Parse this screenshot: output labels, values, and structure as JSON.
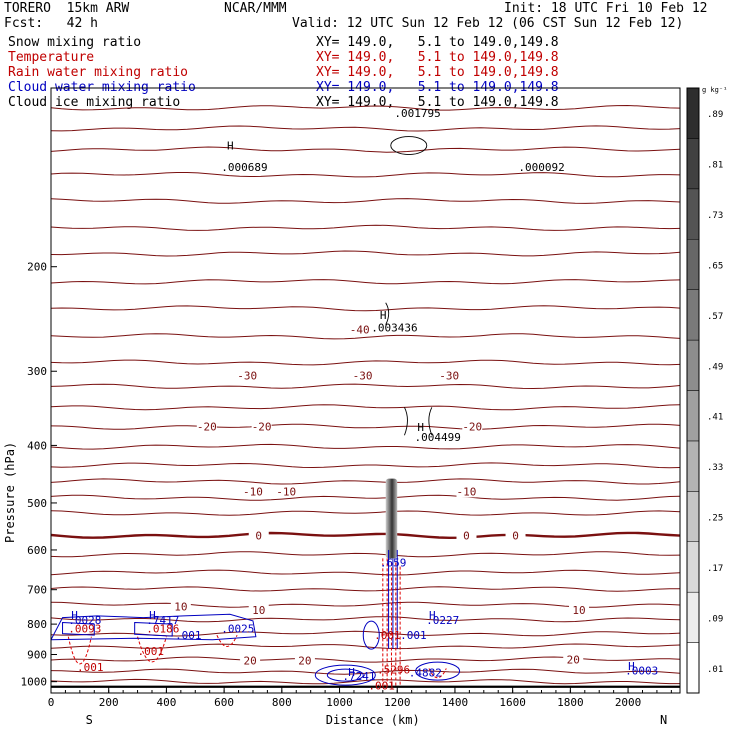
{
  "header": {
    "model": "TORERO  15km ARW",
    "center": "NCAR/MMM",
    "init": "Init: 18 UTC Fri 10 Feb 12",
    "fcst": "Fcst:   42 h",
    "valid": "Valid: 12 UTC Sun 12 Feb 12 (06 CST Sun 12 Feb 12)"
  },
  "fields": [
    {
      "label": "Snow mixing ratio",
      "color": "#000000",
      "xy": "XY= 149.0,   5.1 to 149.0,149.8"
    },
    {
      "label": "Temperature",
      "color": "#c00000",
      "xy": "XY= 149.0,   5.1 to 149.0,149.8"
    },
    {
      "label": "Rain water mixing ratio",
      "color": "#c00000",
      "xy": "XY= 149.0,   5.1 to 149.0,149.8"
    },
    {
      "label": "Cloud water mixing ratio",
      "color": "#0000c0",
      "xy": "XY= 149.0,   5.1 to 149.0,149.8"
    },
    {
      "label": "Cloud ice mixing ratio",
      "color": "#000000",
      "xy": "XY= 149.0,   5.1 to 149.0,149.8"
    }
  ],
  "chart_data": {
    "type": "cross-section",
    "xlabel": "Distance (km)",
    "ylabel": "Pressure (hPa)",
    "x_ticks": [
      0,
      200,
      400,
      600,
      800,
      1000,
      1200,
      1400,
      1600,
      1800,
      2000
    ],
    "xlim": [
      0,
      2180
    ],
    "y_ticks": [
      200,
      300,
      400,
      500,
      600,
      700,
      800,
      900,
      1000
    ],
    "ylim": [
      1045,
      100
    ],
    "y_scale": "log",
    "endpoints": {
      "left": "S",
      "right": "N"
    },
    "colorbar": {
      "unit": "g kg⁻¹",
      "ticks": [
        ".01",
        ".09",
        ".17",
        ".25",
        ".33",
        ".41",
        ".49",
        ".57",
        ".65",
        ".73",
        ".81",
        ".89"
      ]
    },
    "temperature_labels": [
      {
        "text": "-40",
        "x": 1070,
        "p": 255
      },
      {
        "text": "-30",
        "x": 680,
        "p": 305
      },
      {
        "text": "-30",
        "x": 1080,
        "p": 305
      },
      {
        "text": "-30",
        "x": 1380,
        "p": 305
      },
      {
        "text": "-20",
        "x": 540,
        "p": 372
      },
      {
        "text": "-20",
        "x": 730,
        "p": 372
      },
      {
        "text": "-20",
        "x": 1460,
        "p": 372
      },
      {
        "text": "-10",
        "x": 700,
        "p": 478
      },
      {
        "text": "-10",
        "x": 815,
        "p": 478
      },
      {
        "text": "-10",
        "x": 1440,
        "p": 478
      },
      {
        "text": "0",
        "x": 720,
        "p": 567
      },
      {
        "text": "0",
        "x": 1440,
        "p": 567
      },
      {
        "text": "0",
        "x": 1610,
        "p": 567
      },
      {
        "text": "10",
        "x": 450,
        "p": 747
      },
      {
        "text": "10",
        "x": 720,
        "p": 757
      },
      {
        "text": "10",
        "x": 1830,
        "p": 757
      },
      {
        "text": "20",
        "x": 690,
        "p": 922
      },
      {
        "text": "20",
        "x": 880,
        "p": 922
      },
      {
        "text": "20",
        "x": 1810,
        "p": 918
      }
    ],
    "isotherm_levels": [
      108,
      117,
      127,
      140,
      155,
      172,
      190,
      212,
      235,
      262,
      290,
      318,
      345,
      372,
      402,
      432,
      460,
      490,
      520,
      567,
      610,
      655,
      698,
      742,
      785,
      830,
      872,
      918,
      962,
      1000
    ],
    "extrema_labels": [
      {
        "text": "H",
        "x": 610,
        "p": 127,
        "color": "#000000"
      },
      {
        "text": ".000689",
        "x": 590,
        "p": 138,
        "color": "#000000"
      },
      {
        "text": ".000092",
        "x": 1620,
        "p": 138,
        "color": "#000000"
      },
      {
        "text": ".001795",
        "x": 1190,
        "p": 112,
        "color": "#000000"
      },
      {
        "text": "H",
        "x": 1140,
        "p": 245,
        "color": "#000000"
      },
      {
        "text": ".003436",
        "x": 1110,
        "p": 257,
        "color": "#000000"
      },
      {
        "text": "H",
        "x": 1270,
        "p": 378,
        "color": "#000000"
      },
      {
        "text": ".004499",
        "x": 1260,
        "p": 393,
        "color": "#000000"
      },
      {
        "text": ".659",
        "x": 1140,
        "p": 640,
        "color": "#0000c0"
      },
      {
        "text": "H",
        "x": 70,
        "p": 785,
        "color": "#0000c0"
      },
      {
        "text": ".0028",
        "x": 60,
        "p": 800,
        "color": "#0000c0"
      },
      {
        "text": ".0093",
        "x": 60,
        "p": 827,
        "color": "#c00000"
      },
      {
        "text": "H",
        "x": 340,
        "p": 785,
        "color": "#0000c0"
      },
      {
        "text": ".7417",
        "x": 330,
        "p": 800,
        "color": "#0000c0"
      },
      {
        "text": ".0186",
        "x": 330,
        "p": 827,
        "color": "#c00000"
      },
      {
        "text": ".001",
        "x": 430,
        "p": 848,
        "color": "#0000c0"
      },
      {
        "text": ".0025",
        "x": 590,
        "p": 827,
        "color": "#0000c0"
      },
      {
        "text": ".001",
        "x": 300,
        "p": 902,
        "color": "#c00000"
      },
      {
        "text": ".001",
        "x": 90,
        "p": 960,
        "color": "#c00000"
      },
      {
        "text": "H",
        "x": 1310,
        "p": 785,
        "color": "#0000c0"
      },
      {
        "text": ".0227",
        "x": 1300,
        "p": 800,
        "color": "#0000c0"
      },
      {
        "text": ".001",
        "x": 1120,
        "p": 848,
        "color": "#c00000"
      },
      {
        "text": ".001",
        "x": 1210,
        "p": 848,
        "color": "#0000c0"
      },
      {
        "text": ".5296",
        "x": 1130,
        "p": 968,
        "color": "#c00000"
      },
      {
        "text": ".4882",
        "x": 1240,
        "p": 980,
        "color": "#0000c0"
      },
      {
        "text": "H",
        "x": 1030,
        "p": 978,
        "color": "#0000c0"
      },
      {
        "text": ".7241",
        "x": 1010,
        "p": 993,
        "color": "#0000c0"
      },
      {
        "text": ".001",
        "x": 1100,
        "p": 1030,
        "color": "#c00000"
      },
      {
        "text": "H",
        "x": 2000,
        "p": 955,
        "color": "#0000c0"
      },
      {
        "text": ".0003",
        "x": 1990,
        "p": 972,
        "color": "#0000c0"
      }
    ]
  },
  "colors": {
    "temperature": "#7a1010",
    "rain": "#e00000",
    "cloud_water": "#0000c0",
    "snow": "#000000"
  }
}
